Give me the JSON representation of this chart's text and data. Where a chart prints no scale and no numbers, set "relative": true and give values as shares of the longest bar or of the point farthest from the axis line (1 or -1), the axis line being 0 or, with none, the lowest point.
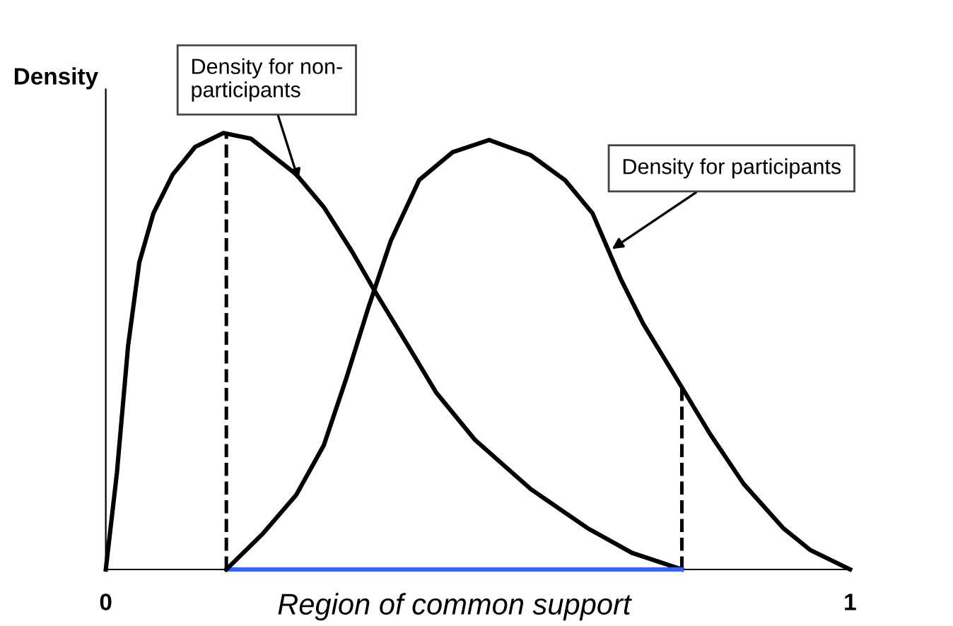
{
  "chart_data": {
    "type": "line",
    "relative": true,
    "ylabel": "Density",
    "xlim": [
      0,
      1
    ],
    "xticks": [
      0,
      1
    ],
    "grid": false,
    "legend": false,
    "marker": "none",
    "line_style": "solid",
    "series": [
      {
        "color": "#000000",
        "x": [
          0,
          0.015,
          0.03,
          0.045,
          0.064,
          0.09,
          0.12,
          0.158,
          0.195,
          0.256,
          0.293,
          0.331,
          0.361,
          0.406,
          0.444,
          0.496,
          0.571,
          0.647,
          0.707,
          0.774
        ],
        "values": [
          0,
          0.222,
          0.513,
          0.703,
          0.816,
          0.905,
          0.968,
          1.0,
          0.987,
          0.905,
          0.83,
          0.728,
          0.639,
          0.513,
          0.405,
          0.297,
          0.184,
          0.095,
          0.038,
          0
        ]
      },
      {
        "color": "#3366ff",
        "x": [
          0.162,
          0.774
        ],
        "values": [
          0,
          0
        ]
      },
      {
        "color": "#000000",
        "x": [
          0.162,
          0.211,
          0.256,
          0.293,
          0.323,
          0.353,
          0.383,
          0.421,
          0.466,
          0.515,
          0.571,
          0.617,
          0.654,
          0.692,
          0.722,
          0.767,
          0.812,
          0.857,
          0.91,
          0.947,
          1.0
        ],
        "values": [
          0,
          0.082,
          0.171,
          0.285,
          0.437,
          0.601,
          0.753,
          0.892,
          0.956,
          0.984,
          0.949,
          0.892,
          0.816,
          0.665,
          0.563,
          0.437,
          0.31,
          0.196,
          0.095,
          0.044,
          0
        ]
      }
    ],
    "ref_lines": [
      {
        "axis": "x",
        "value": 0.162,
        "line_style": "dashed",
        "color": "#000000"
      },
      {
        "axis": "x",
        "value": 0.774,
        "line_style": "dashed",
        "color": "#000000"
      }
    ],
    "annotations": [
      {
        "text": "Density for non-\nparticipants",
        "x": 0.259,
        "y": 0.892
      },
      {
        "text": "Density for participants",
        "x": 0.68,
        "y": 0.734
      },
      {
        "text": "Region of common support",
        "x": 0.468,
        "y": 0
      }
    ]
  }
}
